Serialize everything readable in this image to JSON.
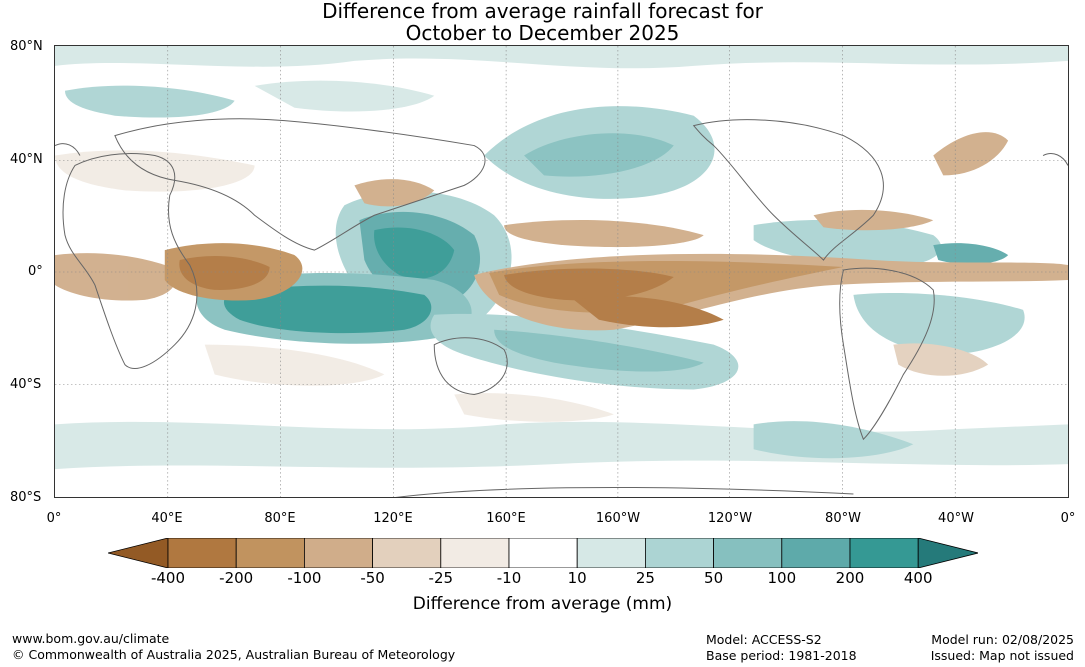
{
  "title": {
    "line1": "Difference from average rainfall forecast for",
    "line2": "October to December 2025"
  },
  "axes": {
    "lat_labels": [
      "80°N",
      "40°N",
      "0°",
      "40°S",
      "80°S"
    ],
    "lon_labels": [
      "0°",
      "40°E",
      "80°E",
      "120°E",
      "160°E",
      "160°W",
      "120°W",
      "80°W",
      "40°W",
      "0°"
    ]
  },
  "legend": {
    "title": "Difference from average (mm)",
    "labels": [
      "-400",
      "-200",
      "-100",
      "-50",
      "-25",
      "-10",
      "10",
      "25",
      "50",
      "100",
      "200",
      "400"
    ],
    "colors": [
      "#935a25",
      "#b07840",
      "#c1935f",
      "#d0ad8a",
      "#e3d0bd",
      "#f2ebe4",
      "#ffffff",
      "#d6e8e6",
      "#acd4d3",
      "#86c0bf",
      "#5eaaaa",
      "#359994",
      "#257a7a"
    ]
  },
  "footer": {
    "url": "www.bom.gov.au/climate",
    "copyright": "© Commonwealth of Australia 2025, Australian Bureau of Meteorology",
    "model": "Model: ACCESS-S2",
    "base_period": "Base period: 1981-2018",
    "model_run": "Model run: 02/08/2025",
    "issued": "Issued: Map not issued"
  }
}
